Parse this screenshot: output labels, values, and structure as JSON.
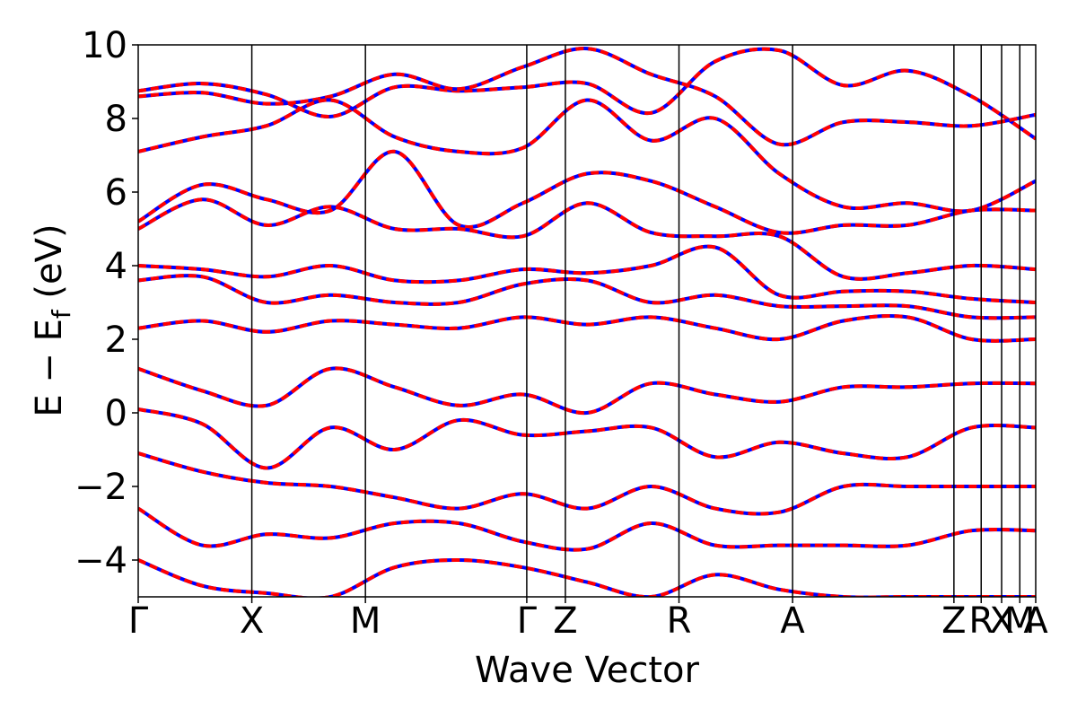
{
  "chart_data": {
    "type": "line",
    "title": "",
    "xlabel": "Wave Vector",
    "ylabel": "E − E",
    "ylabel_sub": "f",
    "ylabel_unit": " (eV)",
    "ylim": [
      -5,
      10
    ],
    "yticks": [
      -4,
      -2,
      0,
      2,
      4,
      6,
      8,
      10
    ],
    "ytick_labels": [
      "−4",
      "−2",
      "0",
      "2",
      "4",
      "6",
      "8",
      "10"
    ],
    "xlim": [
      0,
      7.9
    ],
    "kpoints": [
      {
        "label": "Γ",
        "x": 0.0
      },
      {
        "label": "X",
        "x": 1.0
      },
      {
        "label": "M",
        "x": 2.0
      },
      {
        "label": "Γ",
        "x": 3.42
      },
      {
        "label": "Z",
        "x": 3.76
      },
      {
        "label": "R",
        "x": 4.76
      },
      {
        "label": "A",
        "x": 5.76
      },
      {
        "label": "Z",
        "x": 7.18
      },
      {
        "label": "R",
        "x": 7.42
      },
      {
        "label": "X",
        "x": 7.6
      },
      {
        "label": "M",
        "x": 7.76
      },
      {
        "label": "A",
        "x": 7.9
      }
    ],
    "series_colors": {
      "primary": "#0000ff",
      "overlay": "#ff0000"
    },
    "bands": [
      [
        8.75,
        8.95,
        8.65,
        8.05,
        8.85,
        8.75,
        8.85,
        8.95,
        8.15,
        9.55,
        9.85,
        8.9,
        9.3,
        8.6,
        7.45
      ],
      [
        8.6,
        8.7,
        8.4,
        8.6,
        9.2,
        8.8,
        9.4,
        9.9,
        9.2,
        8.6,
        7.3,
        7.9,
        7.9,
        7.8,
        8.1
      ],
      [
        7.1,
        7.5,
        7.8,
        8.5,
        7.5,
        7.1,
        7.2,
        8.5,
        7.4,
        8.0,
        6.5,
        5.6,
        5.7,
        5.5,
        6.3
      ],
      [
        5.2,
        6.2,
        5.8,
        5.5,
        7.1,
        5.1,
        5.7,
        6.5,
        6.3,
        5.6,
        4.9,
        5.1,
        5.1,
        5.5,
        5.5
      ],
      [
        5.0,
        5.8,
        5.1,
        5.6,
        5.0,
        5.0,
        4.8,
        5.7,
        4.9,
        4.8,
        4.8,
        3.7,
        3.8,
        4.0,
        3.9
      ],
      [
        4.0,
        3.9,
        3.7,
        4.0,
        3.6,
        3.6,
        3.9,
        3.8,
        4.0,
        4.5,
        3.2,
        3.3,
        3.3,
        3.1,
        3.0
      ],
      [
        3.6,
        3.7,
        3.0,
        3.2,
        3.0,
        3.0,
        3.5,
        3.6,
        3.0,
        3.2,
        2.9,
        2.9,
        2.9,
        2.6,
        2.6
      ],
      [
        2.3,
        2.5,
        2.2,
        2.5,
        2.4,
        2.3,
        2.6,
        2.4,
        2.6,
        2.3,
        2.0,
        2.5,
        2.6,
        2.0,
        2.0
      ],
      [
        1.2,
        0.6,
        0.2,
        1.2,
        0.7,
        0.2,
        0.5,
        0.0,
        0.8,
        0.5,
        0.3,
        0.7,
        0.7,
        0.8,
        0.8
      ],
      [
        0.1,
        -0.3,
        -1.5,
        -0.4,
        -1.0,
        -0.2,
        -0.6,
        -0.5,
        -0.4,
        -1.2,
        -0.8,
        -1.1,
        -1.2,
        -0.4,
        -0.4
      ],
      [
        -1.1,
        -1.6,
        -1.9,
        -2.0,
        -2.3,
        -2.6,
        -2.2,
        -2.6,
        -2.0,
        -2.6,
        -2.7,
        -2.0,
        -2.0,
        -2.0,
        -2.0
      ],
      [
        -2.6,
        -3.6,
        -3.3,
        -3.4,
        -3.0,
        -3.0,
        -3.5,
        -3.7,
        -3.0,
        -3.6,
        -3.6,
        -3.6,
        -3.6,
        -3.2,
        -3.2
      ],
      [
        -4.0,
        -4.7,
        -4.9,
        -5.0,
        -4.2,
        -4.0,
        -4.2,
        -4.6,
        -5.0,
        -4.4,
        -4.8,
        -5.0,
        -5.0,
        -5.0,
        -5.0
      ]
    ]
  }
}
